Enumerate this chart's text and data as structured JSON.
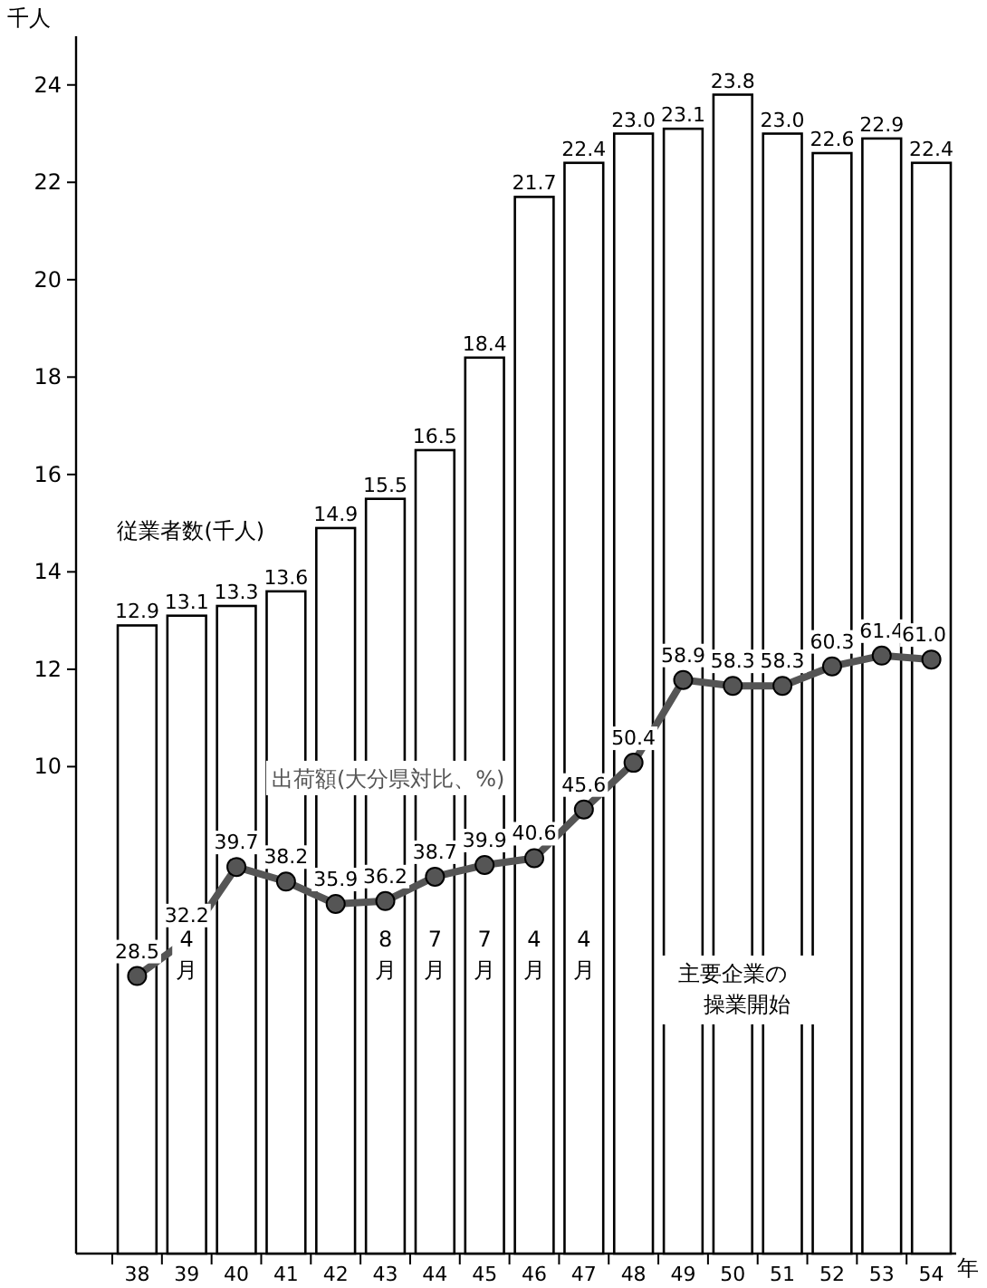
{
  "chart_data": {
    "type": "bar",
    "ylabel": "千人",
    "xlabel": "年",
    "categories": [
      "38",
      "39",
      "40",
      "41",
      "42",
      "43",
      "44",
      "45",
      "46",
      "47",
      "48",
      "49",
      "50",
      "51",
      "52",
      "53",
      "54"
    ],
    "series": [
      {
        "name": "従業者数(千人)",
        "color": "#ffffff",
        "values": [
          12.9,
          13.1,
          13.3,
          13.6,
          14.9,
          15.5,
          16.5,
          18.4,
          21.7,
          22.4,
          23.0,
          23.1,
          23.8,
          23.0,
          22.6,
          22.9,
          22.4
        ],
        "value_labels": [
          "12.9",
          "13.1",
          "13.3",
          "13.6",
          "14.9",
          "15.5",
          "16.5",
          "18.4",
          "21.7",
          "22.4",
          "23.0",
          "23.1",
          "23.8",
          "23.0",
          "22.6",
          "22.9",
          "22.4"
        ]
      },
      {
        "name": "出荷額(大分県対比、%)",
        "type": "line",
        "axis": "y2",
        "color": "#555555",
        "marker": "circle",
        "values": [
          28.5,
          32.2,
          39.7,
          38.2,
          35.9,
          36.2,
          38.7,
          39.9,
          40.6,
          45.6,
          50.4,
          58.9,
          58.3,
          58.3,
          60.3,
          61.4,
          61.0
        ],
        "value_labels": [
          "28.5",
          "32.2",
          "39.7",
          "38.2",
          "35.9",
          "36.2",
          "38.7",
          "39.9",
          "40.6",
          "45.6",
          "50.4",
          "58.9",
          "58.3",
          "58.3",
          "60.3",
          "61.4",
          "61.0"
        ]
      }
    ],
    "ylim": [
      0,
      25
    ],
    "yticks": [
      10,
      12,
      14,
      16,
      18,
      20,
      22,
      24
    ],
    "y2lim": [
      0,
      125
    ],
    "annotations": [
      "4月",
      "8月",
      "7月",
      "7月",
      "4月",
      "4月",
      "主要企業の操業開始"
    ]
  }
}
